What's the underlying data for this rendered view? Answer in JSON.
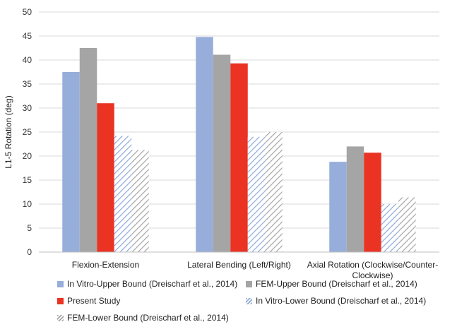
{
  "chart_data": {
    "type": "bar",
    "ylabel": "L1-5 Rotation (deg)",
    "ylim": [
      0,
      50
    ],
    "yticks": [
      0,
      5,
      10,
      15,
      20,
      25,
      30,
      35,
      40,
      45,
      50
    ],
    "grid": "horizontal",
    "legend_position": "bottom",
    "categories": [
      [
        "Flexion-Extension"
      ],
      [
        "Lateral Bending (Left/Right)"
      ],
      [
        "Axial Rotation (Clockwise/Counter-",
        "Clockwise)"
      ]
    ],
    "series": [
      {
        "name": "In Vitro-Upper Bound (Dreischarf et al., 2014)",
        "color": "#97aedb",
        "pattern": "solid",
        "values": [
          37.5,
          44.8,
          18.8
        ]
      },
      {
        "name": "FEM-Upper Bound (Dreischarf et al., 2014)",
        "color": "#a5a5a5",
        "pattern": "solid",
        "values": [
          42.5,
          41.1,
          22.0
        ]
      },
      {
        "name": "Present Study",
        "color": "#ea3323",
        "pattern": "solid",
        "values": [
          31.0,
          39.3,
          20.7
        ]
      },
      {
        "name": "In Vitro-Lower Bound (Dreischarf et al., 2014)",
        "color": "#8fa9d9",
        "pattern": "hatch",
        "values": [
          24.2,
          24.0,
          10.0
        ]
      },
      {
        "name": "FEM-Lower Bound (Dreischarf et al., 2014)",
        "color": "#a5a5a5",
        "pattern": "hatch",
        "values": [
          21.3,
          25.0,
          11.4
        ]
      }
    ]
  }
}
